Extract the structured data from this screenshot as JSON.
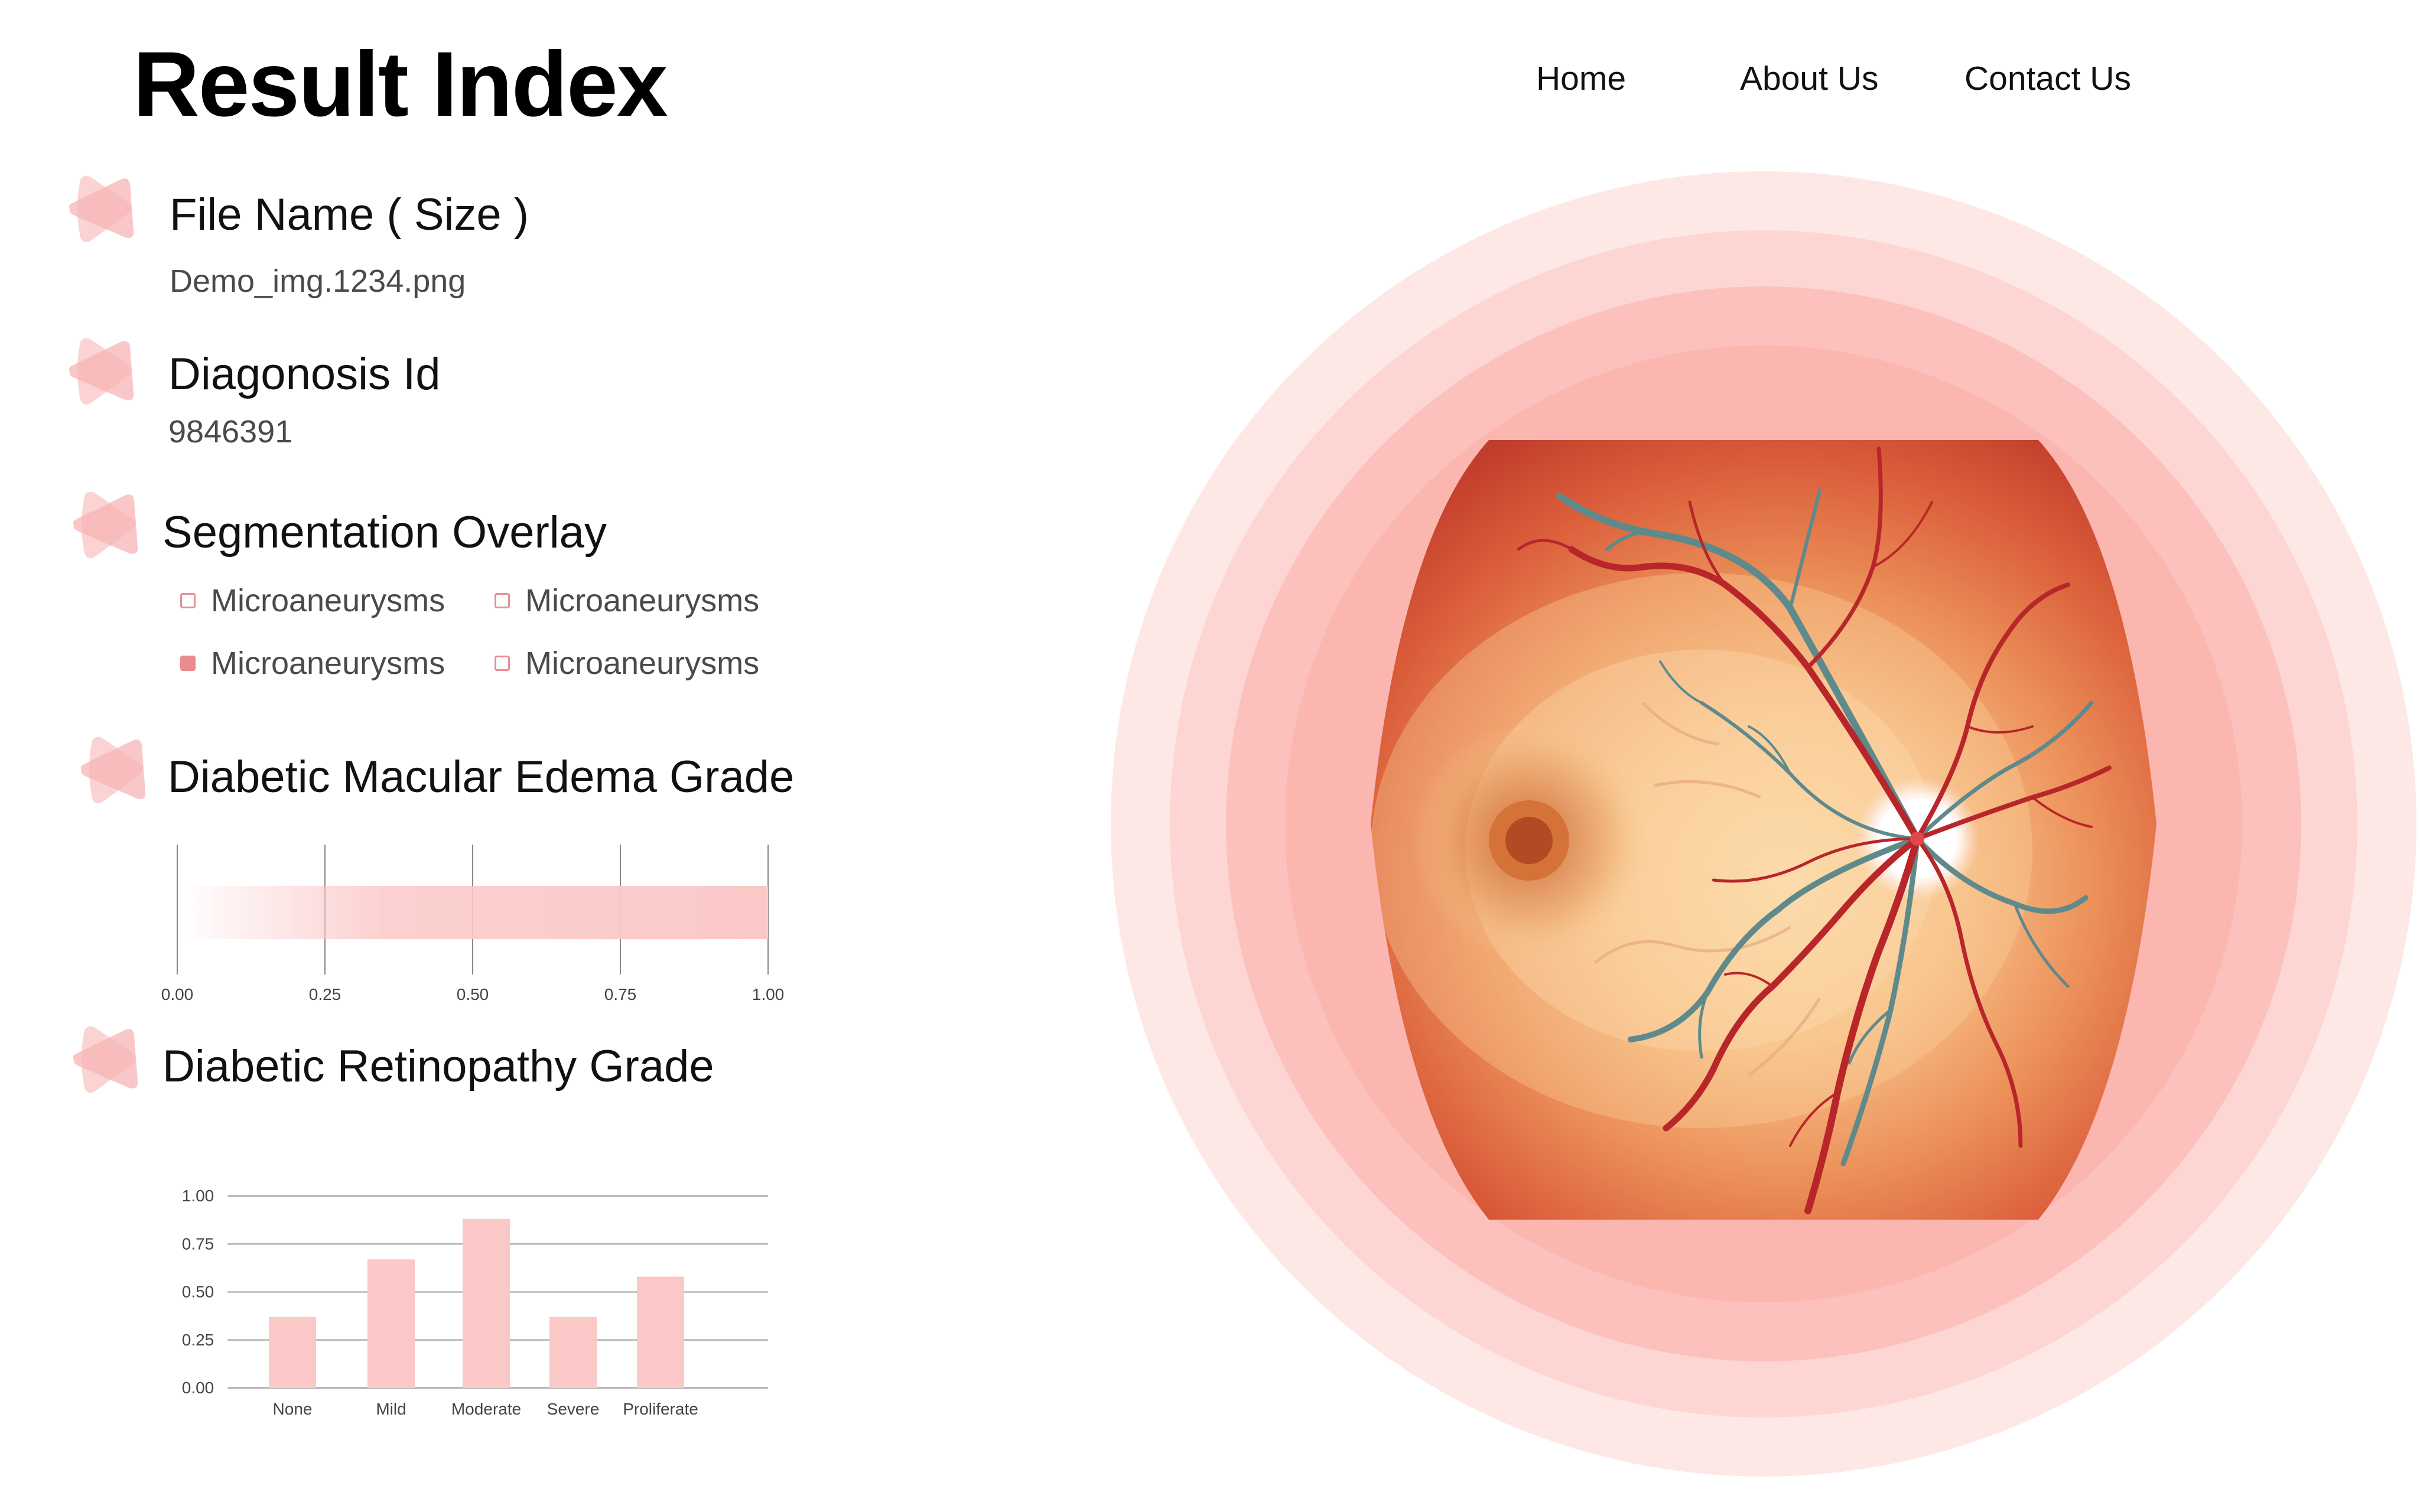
{
  "header": {
    "title": "Result Index"
  },
  "nav": {
    "items": [
      "Home",
      "About Us",
      "Contact Us"
    ]
  },
  "sections": {
    "file_name": {
      "label": "File Name ( Size )",
      "value": "Demo_img.1234.png"
    },
    "diagnosis_id": {
      "label": "Diagonosis Id",
      "value": "9846391"
    },
    "segmentation": {
      "label": "Segmentation Overlay",
      "items": [
        {
          "label": "Microaneurysms",
          "checked": false
        },
        {
          "label": "Microaneurysms",
          "checked": false
        },
        {
          "label": "Microaneurysms",
          "checked": true
        },
        {
          "label": "Microaneurysms",
          "checked": false
        }
      ]
    },
    "macular_edema": {
      "label": "Diabetic Macular Edema Grade"
    },
    "retinopathy": {
      "label": "Diabetic Retinopathy Grade"
    }
  },
  "chart_data": [
    {
      "type": "bar",
      "orientation": "horizontal",
      "value": 1.0,
      "xlim": [
        0,
        1
      ],
      "ticks": [
        "0.00",
        "0.25",
        "0.50",
        "0.75",
        "1.00"
      ],
      "grid": true
    },
    {
      "type": "bar",
      "categories": [
        "None",
        "Mild",
        "Moderate",
        "Severe",
        "Proliferate"
      ],
      "values": [
        0.37,
        0.67,
        0.88,
        0.37,
        0.58
      ],
      "ylim": [
        0,
        1
      ],
      "ticks": [
        "0.00",
        "0.25",
        "0.50",
        "0.75",
        "1.00"
      ],
      "grid": true
    }
  ],
  "colors": {
    "accent": "#f4b8b8",
    "accent_light": "#fde1e1",
    "bar": "#fbc8c8",
    "grid": "#999999",
    "vessel_red": "#b8262a",
    "vessel_teal": "#5f8a8b"
  },
  "icons": {
    "section": "triangle-blob-icon",
    "artwork": "retina-fundus-illustration"
  }
}
